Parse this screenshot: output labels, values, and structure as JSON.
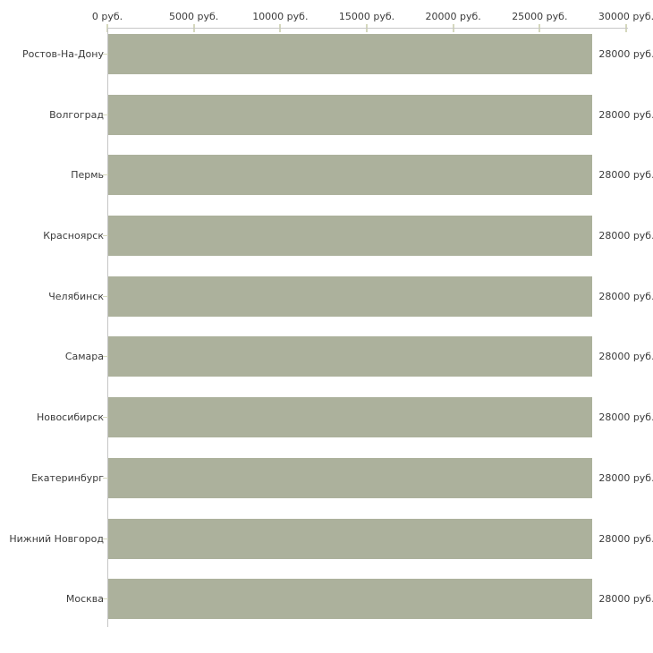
{
  "chart_data": {
    "type": "bar",
    "orientation": "horizontal",
    "title": "",
    "xlabel": "",
    "ylabel": "",
    "unit": "руб.",
    "categories": [
      "Ростов-На-Дону",
      "Волгоград",
      "Пермь",
      "Красноярск",
      "Челябинск",
      "Самара",
      "Новосибирск",
      "Екатеринбург",
      "Нижний Новгород",
      "Москва"
    ],
    "values": [
      28000,
      28000,
      28000,
      28000,
      28000,
      28000,
      28000,
      28000,
      28000,
      28000
    ],
    "value_labels": [
      "28000 руб.",
      "28000 руб.",
      "28000 руб.",
      "28000 руб.",
      "28000 руб.",
      "28000 руб.",
      "28000 руб.",
      "28000 руб.",
      "28000 руб.",
      "28000 руб."
    ],
    "x_tick_values": [
      0,
      5000,
      10000,
      15000,
      20000,
      25000,
      30000
    ],
    "x_tick_labels": [
      "0 руб.",
      "5000 руб.",
      "10000 руб.",
      "15000 руб.",
      "20000 руб.",
      "25000 руб.",
      "30000 руб."
    ],
    "xlim": [
      0,
      30000
    ],
    "grid": false,
    "legend": false,
    "colors": {
      "bar": "#acb19c",
      "axis_line": "#c6c6c6",
      "tick": "#d5d8bd",
      "text": "#3b3b3b",
      "background": "#ffffff"
    }
  }
}
